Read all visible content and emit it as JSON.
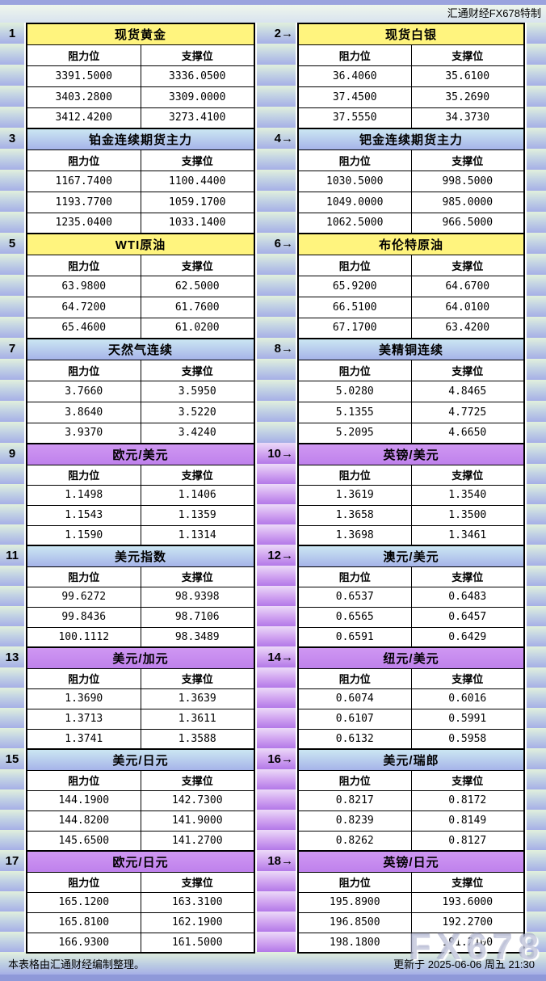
{
  "page": {
    "brand": "汇通财经FX678特制",
    "watermark": "FX678",
    "footer_note": "本表格由汇通财经编制整理。",
    "updated": "更新于 2025-06-06 周五 21:30"
  },
  "labels": {
    "resistance": "阻力位",
    "support": "支撑位"
  },
  "colors": {
    "yellow_header": "#fff47e",
    "blue_header_top": "#cbe6f2",
    "blue_header_bottom": "#a6b4e9",
    "purple_header": "#c78df0",
    "band_top": "#e1f0dc",
    "band_bottom": "#a6afe6",
    "purple_band_top": "#ecdaf8",
    "purple_band_bottom": "#b378e8",
    "edge_strip": "#9aa3de"
  },
  "chart_data": {
    "type": "table",
    "title": "汇通财经FX678特制",
    "columns": [
      "阻力位",
      "支撑位"
    ],
    "groups": [
      {
        "tag": "1",
        "title": "现货黄金",
        "style": "yellow",
        "resistance": [
          "3391.5000",
          "3403.2800",
          "3412.4200"
        ],
        "support": [
          "3336.0500",
          "3309.0000",
          "3273.4100"
        ]
      },
      {
        "tag": "2→",
        "title": "现货白银",
        "style": "yellow",
        "resistance": [
          "36.4060",
          "37.4500",
          "37.5550"
        ],
        "support": [
          "35.6100",
          "35.2690",
          "34.3730"
        ]
      },
      {
        "tag": "3",
        "title": "铂金连续期货主力",
        "style": "blue",
        "resistance": [
          "1167.7400",
          "1193.7700",
          "1235.0400"
        ],
        "support": [
          "1100.4400",
          "1059.1700",
          "1033.1400"
        ]
      },
      {
        "tag": "4→",
        "title": "钯金连续期货主力",
        "style": "blue",
        "resistance": [
          "1030.5000",
          "1049.0000",
          "1062.5000"
        ],
        "support": [
          "998.5000",
          "985.0000",
          "966.5000"
        ]
      },
      {
        "tag": "5",
        "title": "WTI原油",
        "style": "yellow",
        "resistance": [
          "63.9800",
          "64.7200",
          "65.4600"
        ],
        "support": [
          "62.5000",
          "61.7600",
          "61.0200"
        ]
      },
      {
        "tag": "6→",
        "title": "布伦特原油",
        "style": "yellow",
        "resistance": [
          "65.9200",
          "66.5100",
          "67.1700"
        ],
        "support": [
          "64.6700",
          "64.0100",
          "63.4200"
        ]
      },
      {
        "tag": "7",
        "title": "天然气连续",
        "style": "blue",
        "resistance": [
          "3.7660",
          "3.8640",
          "3.9370"
        ],
        "support": [
          "3.5950",
          "3.5220",
          "3.4240"
        ]
      },
      {
        "tag": "8→",
        "title": "美精铜连续",
        "style": "blue",
        "resistance": [
          "5.0280",
          "5.1355",
          "5.2095"
        ],
        "support": [
          "4.8465",
          "4.7725",
          "4.6650"
        ]
      },
      {
        "tag": "9",
        "title": "欧元/美元",
        "style": "purple",
        "resistance": [
          "1.1498",
          "1.1543",
          "1.1590"
        ],
        "support": [
          "1.1406",
          "1.1359",
          "1.1314"
        ]
      },
      {
        "tag": "10→",
        "title": "英镑/美元",
        "style": "purple",
        "resistance": [
          "1.3619",
          "1.3658",
          "1.3698"
        ],
        "support": [
          "1.3540",
          "1.3500",
          "1.3461"
        ]
      },
      {
        "tag": "11",
        "title": "美元指数",
        "style": "blue",
        "resistance": [
          "99.6272",
          "99.8436",
          "100.1112"
        ],
        "support": [
          "98.9398",
          "98.7106",
          "98.3489"
        ]
      },
      {
        "tag": "12→",
        "title": "澳元/美元",
        "style": "blue",
        "resistance": [
          "0.6537",
          "0.6565",
          "0.6591"
        ],
        "support": [
          "0.6483",
          "0.6457",
          "0.6429"
        ]
      },
      {
        "tag": "13",
        "title": "美元/加元",
        "style": "purple",
        "resistance": [
          "1.3690",
          "1.3713",
          "1.3741"
        ],
        "support": [
          "1.3639",
          "1.3611",
          "1.3588"
        ]
      },
      {
        "tag": "14→",
        "title": "纽元/美元",
        "style": "purple",
        "resistance": [
          "0.6074",
          "0.6107",
          "0.6132"
        ],
        "support": [
          "0.6016",
          "0.5991",
          "0.5958"
        ]
      },
      {
        "tag": "15",
        "title": "美元/日元",
        "style": "blue",
        "resistance": [
          "144.1900",
          "144.8200",
          "145.6500"
        ],
        "support": [
          "142.7300",
          "141.9000",
          "141.2700"
        ]
      },
      {
        "tag": "16→",
        "title": "美元/瑞郎",
        "style": "blue",
        "resistance": [
          "0.8217",
          "0.8239",
          "0.8262"
        ],
        "support": [
          "0.8172",
          "0.8149",
          "0.8127"
        ]
      },
      {
        "tag": "17",
        "title": "欧元/日元",
        "style": "purple",
        "resistance": [
          "165.1200",
          "165.8100",
          "166.9300"
        ],
        "support": [
          "163.3100",
          "162.1900",
          "161.5000"
        ]
      },
      {
        "tag": "18→",
        "title": "英镑/日元",
        "style": "purple",
        "resistance": [
          "195.8900",
          "196.8500",
          "198.1800"
        ],
        "support": [
          "193.6000",
          "192.2700",
          "191.2100"
        ]
      }
    ]
  }
}
